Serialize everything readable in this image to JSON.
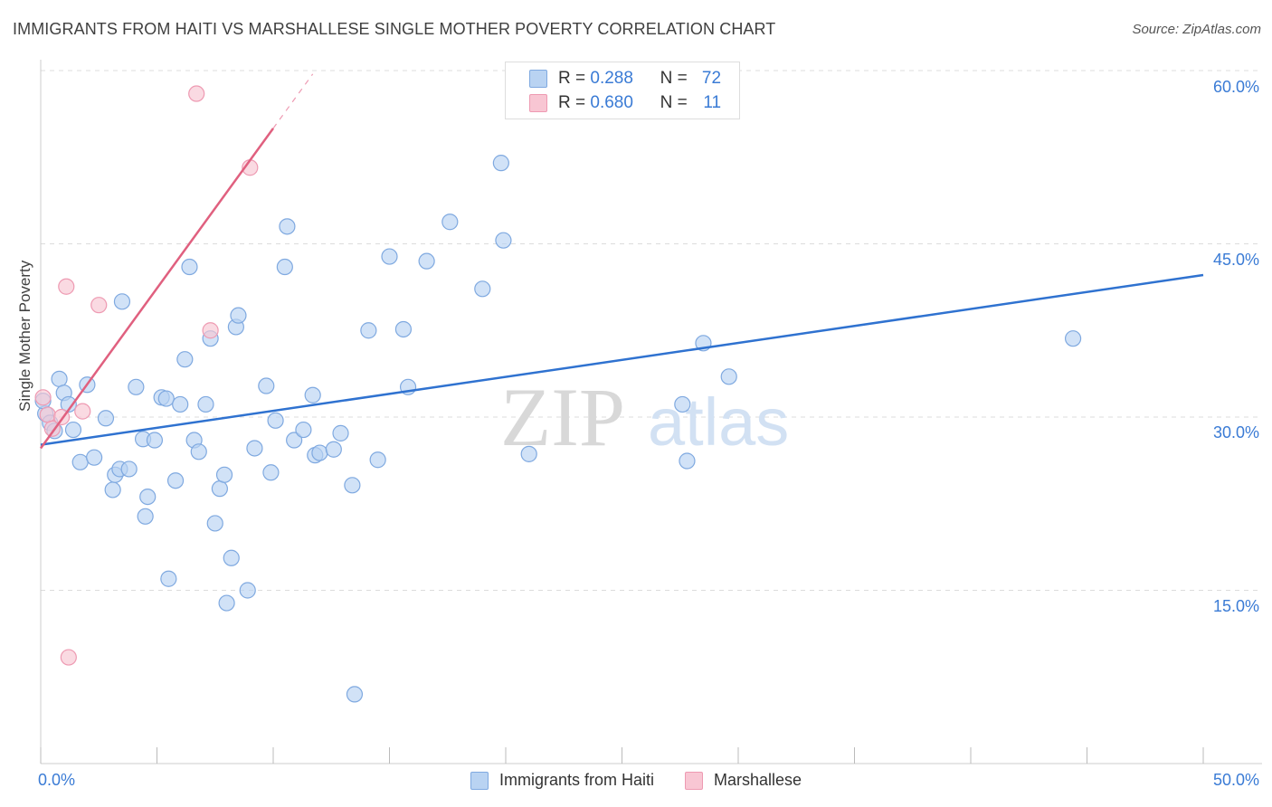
{
  "title": "IMMIGRANTS FROM HAITI VS MARSHALLESE SINGLE MOTHER POVERTY CORRELATION CHART",
  "source": "Source: ZipAtlas.com",
  "watermark": {
    "zip": "ZIP",
    "atlas": "atlas"
  },
  "legend_stats": [
    {
      "r_label": "R =",
      "r_value": "0.288",
      "n_label": "N =",
      "n_value": "72"
    },
    {
      "r_label": "R =",
      "r_value": "0.680",
      "n_label": "N =",
      "n_value": "11"
    }
  ],
  "colors": {
    "haiti_fill": "#b9d3f2",
    "haiti_stroke": "#7fa9e0",
    "haiti_line": "#2f72d0",
    "marsh_fill": "#f8c6d3",
    "marsh_stroke": "#ee9ab2",
    "marsh_line": "#e0607f",
    "tick_label": "#3a7bd5",
    "grid": "#dcdcdc"
  },
  "chart_data": {
    "type": "scatter",
    "title": "IMMIGRANTS FROM HAITI VS MARSHALLESE SINGLE MOTHER POVERTY CORRELATION CHART",
    "xlabel": "",
    "ylabel": "Single Mother Poverty",
    "xlim": [
      0,
      50
    ],
    "ylim": [
      0,
      60
    ],
    "x_tick_labels": [
      "0.0%",
      "50.0%"
    ],
    "y_ticks": [
      15,
      30,
      45,
      60
    ],
    "y_tick_labels": [
      "15.0%",
      "30.0%",
      "45.0%",
      "60.0%"
    ],
    "grid": "horizontal dashed",
    "legend_position": "bottom",
    "series": [
      {
        "name": "Immigrants from Haiti",
        "points": [
          [
            0.2,
            30.3
          ],
          [
            0.4,
            29.5
          ],
          [
            0.6,
            28.8
          ],
          [
            0.8,
            33.3
          ],
          [
            1.0,
            32.1
          ],
          [
            1.2,
            31.1
          ],
          [
            1.4,
            28.9
          ],
          [
            1.7,
            26.1
          ],
          [
            2.0,
            32.8
          ],
          [
            2.3,
            26.5
          ],
          [
            2.8,
            29.9
          ],
          [
            3.1,
            23.7
          ],
          [
            3.2,
            25.0
          ],
          [
            3.4,
            25.5
          ],
          [
            3.5,
            40.0
          ],
          [
            3.8,
            25.5
          ],
          [
            4.1,
            32.6
          ],
          [
            4.4,
            28.1
          ],
          [
            4.5,
            21.4
          ],
          [
            4.6,
            23.1
          ],
          [
            4.9,
            28.0
          ],
          [
            5.2,
            31.7
          ],
          [
            5.4,
            31.6
          ],
          [
            5.5,
            16.0
          ],
          [
            5.8,
            24.5
          ],
          [
            6.0,
            31.1
          ],
          [
            6.2,
            35.0
          ],
          [
            6.4,
            43.0
          ],
          [
            6.6,
            28.0
          ],
          [
            6.8,
            27.0
          ],
          [
            7.1,
            31.1
          ],
          [
            7.3,
            36.8
          ],
          [
            7.5,
            20.8
          ],
          [
            7.7,
            23.8
          ],
          [
            7.9,
            25.0
          ],
          [
            8.0,
            13.9
          ],
          [
            8.2,
            17.8
          ],
          [
            8.4,
            37.8
          ],
          [
            8.5,
            38.8
          ],
          [
            8.9,
            15.0
          ],
          [
            9.2,
            27.3
          ],
          [
            9.7,
            32.7
          ],
          [
            9.9,
            25.2
          ],
          [
            10.1,
            29.7
          ],
          [
            10.5,
            43.0
          ],
          [
            10.6,
            46.5
          ],
          [
            10.9,
            28.0
          ],
          [
            11.3,
            28.9
          ],
          [
            11.7,
            31.9
          ],
          [
            11.8,
            26.7
          ],
          [
            12.0,
            26.9
          ],
          [
            12.6,
            27.2
          ],
          [
            12.9,
            28.6
          ],
          [
            13.4,
            24.1
          ],
          [
            13.5,
            6.0
          ],
          [
            14.1,
            37.5
          ],
          [
            14.5,
            26.3
          ],
          [
            15.0,
            43.9
          ],
          [
            15.6,
            37.6
          ],
          [
            15.8,
            32.6
          ],
          [
            16.6,
            43.5
          ],
          [
            17.6,
            46.9
          ],
          [
            19.0,
            41.1
          ],
          [
            19.8,
            52.0
          ],
          [
            19.9,
            45.3
          ],
          [
            21.0,
            26.8
          ],
          [
            27.6,
            31.1
          ],
          [
            27.8,
            26.2
          ],
          [
            28.5,
            36.4
          ],
          [
            29.6,
            33.5
          ],
          [
            44.4,
            36.8
          ],
          [
            0.1,
            31.4
          ]
        ],
        "trend": {
          "x": [
            0,
            50
          ],
          "y": [
            27.6,
            42.3
          ]
        }
      },
      {
        "name": "Marshallese",
        "points": [
          [
            0.1,
            31.7
          ],
          [
            0.3,
            30.2
          ],
          [
            0.5,
            29.0
          ],
          [
            0.9,
            30.0
          ],
          [
            1.1,
            41.3
          ],
          [
            1.8,
            30.5
          ],
          [
            2.5,
            39.7
          ],
          [
            6.7,
            58.0
          ],
          [
            7.3,
            37.5
          ],
          [
            9.0,
            51.6
          ],
          [
            1.2,
            9.2
          ]
        ],
        "trend": {
          "x": [
            0,
            10
          ],
          "y": [
            27.3,
            55.0
          ]
        },
        "trend_extension": {
          "x": [
            10,
            11.7
          ],
          "y": [
            55.0,
            59.7
          ]
        }
      }
    ]
  }
}
